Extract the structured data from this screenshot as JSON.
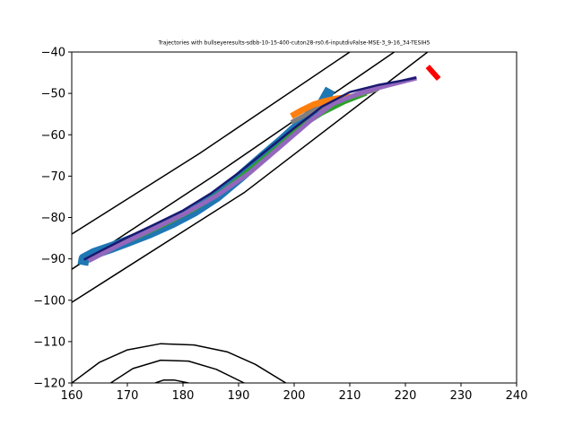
{
  "chart_data": {
    "type": "line",
    "title": "Trajectories with bullseyeresults-sdbb-10-15-400-cuton28-rs0.6-inputdivFalse-MSE-3_9-16_34-TESIH5",
    "xlabel": "",
    "ylabel": "",
    "xlim": [
      160,
      240
    ],
    "ylim": [
      -120,
      -40
    ],
    "x_ticks": [
      160,
      170,
      180,
      190,
      200,
      210,
      220,
      230,
      240
    ],
    "y_ticks": [
      -40,
      -50,
      -60,
      -70,
      -80,
      -90,
      -100,
      -110,
      -120
    ],
    "x_tick_labels": [
      "160",
      "170",
      "180",
      "190",
      "200",
      "210",
      "220",
      "230",
      "240"
    ],
    "y_tick_labels": [
      "−40",
      "−50",
      "−60",
      "−70",
      "−80",
      "−90",
      "−100",
      "−110",
      "−120"
    ],
    "grid": false,
    "legend": "none",
    "series": [
      {
        "color": "#1f77b4",
        "width": 12,
        "points": [
          [
            162.0,
            -91.5
          ],
          [
            162.2,
            -90.0
          ],
          [
            164.0,
            -88.7
          ],
          [
            167.0,
            -87.3
          ],
          [
            170.0,
            -85.8
          ],
          [
            174.0,
            -83.7
          ],
          [
            178.0,
            -81.3
          ],
          [
            182.0,
            -78.5
          ],
          [
            186.0,
            -75.0
          ],
          [
            190.0,
            -70.5
          ],
          [
            194.0,
            -65.8
          ],
          [
            198.0,
            -61.2
          ],
          [
            202.0,
            -56.3
          ],
          [
            205.0,
            -52.6
          ],
          [
            206.5,
            -49.0
          ]
        ]
      },
      {
        "color": "#ff7f0e",
        "width": 7,
        "points": [
          [
            199.5,
            -55.5
          ],
          [
            201.5,
            -54.0
          ],
          [
            203.5,
            -52.7
          ],
          [
            205.5,
            -51.9
          ],
          [
            207.5,
            -51.3
          ],
          [
            209.5,
            -51.0
          ],
          [
            210.8,
            -50.8
          ]
        ]
      },
      {
        "color": "#2ca02c",
        "width": 5,
        "points": [
          [
            163.0,
            -90.2
          ],
          [
            167.0,
            -87.4
          ],
          [
            172.0,
            -84.6
          ],
          [
            177.0,
            -81.5
          ],
          [
            182.0,
            -78.0
          ],
          [
            187.0,
            -73.8
          ],
          [
            192.0,
            -68.5
          ],
          [
            197.0,
            -63.0
          ],
          [
            201.0,
            -58.2
          ],
          [
            205.0,
            -54.8
          ],
          [
            209.0,
            -52.1
          ],
          [
            213.0,
            -50.0
          ]
        ]
      },
      {
        "color": "#7f7f7f",
        "width": 5,
        "points": [
          [
            199.5,
            -57.0
          ],
          [
            203.0,
            -54.5
          ],
          [
            207.0,
            -52.3
          ],
          [
            211.0,
            -50.5
          ],
          [
            215.0,
            -49.0
          ]
        ]
      },
      {
        "color": "#9467bd",
        "width": 5,
        "points": [
          [
            163.0,
            -90.5
          ],
          [
            168.0,
            -87.0
          ],
          [
            174.0,
            -83.2
          ],
          [
            180.0,
            -79.3
          ],
          [
            186.0,
            -74.8
          ],
          [
            192.0,
            -69.2
          ],
          [
            198.0,
            -62.3
          ],
          [
            203.0,
            -56.5
          ],
          [
            207.0,
            -52.5
          ],
          [
            212.0,
            -49.8
          ],
          [
            217.0,
            -48.0
          ],
          [
            222.0,
            -46.3
          ]
        ]
      },
      {
        "color": "#191970",
        "width": 2.5,
        "points": [
          [
            162.2,
            -90.2
          ],
          [
            165.0,
            -88.2
          ],
          [
            170.0,
            -84.8
          ],
          [
            175.0,
            -81.6
          ],
          [
            180.0,
            -78.3
          ],
          [
            185.0,
            -74.2
          ],
          [
            190.0,
            -69.2
          ],
          [
            195.0,
            -63.8
          ],
          [
            200.0,
            -58.4
          ],
          [
            205.0,
            -53.2
          ],
          [
            210.0,
            -49.7
          ],
          [
            215.0,
            -48.0
          ],
          [
            219.0,
            -47.0
          ],
          [
            222.0,
            -46.2
          ]
        ]
      },
      {
        "color": "#ff0000",
        "width": 6,
        "points": [
          [
            224.0,
            -43.5
          ],
          [
            226.0,
            -46.5
          ]
        ]
      }
    ],
    "contours": [
      {
        "color": "#000000",
        "width": 1.5,
        "points": [
          [
            160.0,
            -84.0
          ],
          [
            183.0,
            -64.5
          ],
          [
            210.0,
            -40.0
          ]
        ]
      },
      {
        "color": "#000000",
        "width": 1.5,
        "points": [
          [
            160.0,
            -92.5
          ],
          [
            186.0,
            -69.5
          ],
          [
            218.0,
            -40.0
          ]
        ]
      },
      {
        "color": "#000000",
        "width": 1.5,
        "points": [
          [
            160.0,
            -100.5
          ],
          [
            191.0,
            -74.0
          ],
          [
            224.0,
            -40.0
          ]
        ]
      },
      {
        "color": "#000000",
        "width": 1.5,
        "points": [
          [
            160.0,
            -120.0
          ],
          [
            165.0,
            -115.0
          ],
          [
            170.0,
            -112.0
          ],
          [
            176.0,
            -110.5
          ],
          [
            182.0,
            -110.8
          ],
          [
            188.0,
            -112.5
          ],
          [
            193.0,
            -115.5
          ],
          [
            198.5,
            -120.0
          ]
        ]
      },
      {
        "color": "#000000",
        "width": 1.5,
        "points": [
          [
            167.0,
            -120.0
          ],
          [
            171.0,
            -116.5
          ],
          [
            176.0,
            -114.5
          ],
          [
            181.0,
            -114.7
          ],
          [
            186.0,
            -116.7
          ],
          [
            191.0,
            -120.0
          ]
        ]
      },
      {
        "color": "#000000",
        "width": 1.5,
        "points": [
          [
            175.0,
            -120.0
          ],
          [
            176.5,
            -119.3
          ],
          [
            178.5,
            -119.3
          ],
          [
            181.0,
            -120.0
          ]
        ]
      }
    ]
  }
}
